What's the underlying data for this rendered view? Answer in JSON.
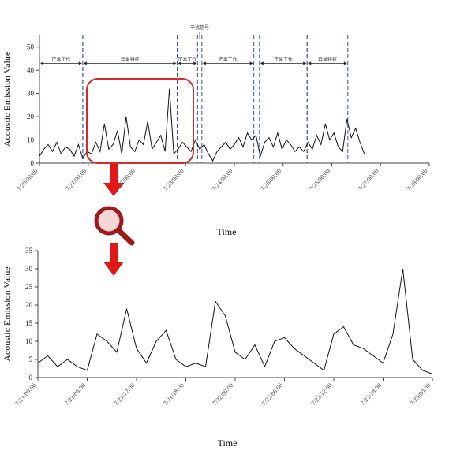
{
  "chart_data": [
    {
      "type": "line",
      "ylabel": "Acoustic Emission Value",
      "xlabel": "Time",
      "ylim": [
        0,
        55
      ],
      "yticks": [
        0,
        10,
        20,
        30,
        40,
        50
      ],
      "xlim": [
        0,
        9
      ],
      "xtick_labels": [
        "7/20/00:00",
        "7/21/00:00",
        "7/22/00:00",
        "7/23/00:00",
        "7/24/00:00",
        "7/25/00:00",
        "7/26/00:00",
        "7/27/00:00",
        "7/28/00:00"
      ],
      "segments": [
        {
          "label": "正常工作",
          "from": 0.0,
          "to": 1.0
        },
        {
          "label": "异常特征",
          "from": 1.0,
          "to": 3.18
        },
        {
          "label": "正常工作",
          "from": 3.18,
          "to": 3.65
        },
        {
          "label": "正常工作",
          "from": 3.75,
          "to": 4.95
        },
        {
          "label": "正常工作",
          "from": 5.08,
          "to": 6.18
        },
        {
          "label": "异常特征",
          "from": 6.18,
          "to": 7.12
        }
      ],
      "top_annotation": "干扰信号",
      "series": [
        {
          "x": [
            0,
            0.1,
            0.2,
            0.3,
            0.4,
            0.5,
            0.6,
            0.7,
            0.8,
            0.9,
            1.0,
            1.1,
            1.2,
            1.3,
            1.4,
            1.5,
            1.6,
            1.7,
            1.8,
            1.9,
            2.0,
            2.1,
            2.2,
            2.3,
            2.4,
            2.5,
            2.6,
            2.7,
            2.8,
            2.9,
            3.0,
            3.1,
            3.2,
            3.3,
            3.4,
            3.5,
            3.6,
            3.7,
            3.8,
            3.9,
            4.0,
            4.1,
            4.2,
            4.3,
            4.4,
            4.5,
            4.6,
            4.7,
            4.8,
            4.9,
            5.0,
            5.1,
            5.2,
            5.3,
            5.4,
            5.5,
            5.6,
            5.7,
            5.8,
            5.9,
            6.0,
            6.1,
            6.2,
            6.3,
            6.4,
            6.5,
            6.6,
            6.7,
            6.8,
            6.9,
            7.0,
            7.1,
            7.2,
            7.3,
            7.4,
            7.5
          ],
          "y": [
            3,
            6,
            8,
            5,
            9,
            4,
            7,
            6,
            3,
            8,
            2,
            5,
            4,
            9,
            5,
            17,
            6,
            8,
            14,
            4,
            20,
            7,
            5,
            10,
            8,
            18,
            6,
            9,
            12,
            5,
            32,
            4,
            6,
            9,
            7,
            5,
            10,
            6,
            8,
            4,
            1,
            5,
            7,
            9,
            6,
            8,
            11,
            7,
            13,
            10,
            12,
            3,
            9,
            11,
            7,
            13,
            6,
            10,
            8,
            5,
            7,
            5,
            9,
            6,
            12,
            8,
            17,
            10,
            13,
            7,
            5,
            19,
            11,
            15,
            9,
            4
          ]
        }
      ]
    },
    {
      "type": "line",
      "ylabel": "Acoustic Emission Value",
      "xlabel": "Time",
      "ylim": [
        0,
        35
      ],
      "yticks": [
        0,
        5,
        10,
        15,
        20,
        25,
        30,
        35
      ],
      "xlim": [
        0,
        8
      ],
      "xtick_labels": [
        "7/21/00:00",
        "7/21/06:00",
        "7/21/12:00",
        "7/21/18:00",
        "7/22/00:00",
        "7/22/06:00",
        "7/22/12:00",
        "7/22/18:00",
        "7/23/00:00"
      ],
      "series": [
        {
          "x": [
            0,
            0.2,
            0.4,
            0.6,
            0.8,
            1.0,
            1.2,
            1.4,
            1.6,
            1.8,
            2.0,
            2.2,
            2.4,
            2.6,
            2.8,
            3.0,
            3.2,
            3.4,
            3.6,
            3.8,
            4.0,
            4.2,
            4.4,
            4.6,
            4.8,
            5.0,
            5.2,
            5.4,
            5.6,
            5.8,
            6.0,
            6.2,
            6.4,
            6.6,
            6.8,
            7.0,
            7.2,
            7.4,
            7.6,
            7.8,
            8.0
          ],
          "y": [
            4,
            6,
            3,
            5,
            3,
            2,
            12,
            10,
            7,
            19,
            8,
            4,
            10,
            13,
            5,
            3,
            4,
            3,
            21,
            17,
            7,
            5,
            9,
            3,
            10,
            11,
            8,
            6,
            4,
            2,
            12,
            14,
            9,
            8,
            6,
            4,
            12,
            30,
            5,
            2,
            1
          ]
        }
      ]
    }
  ]
}
